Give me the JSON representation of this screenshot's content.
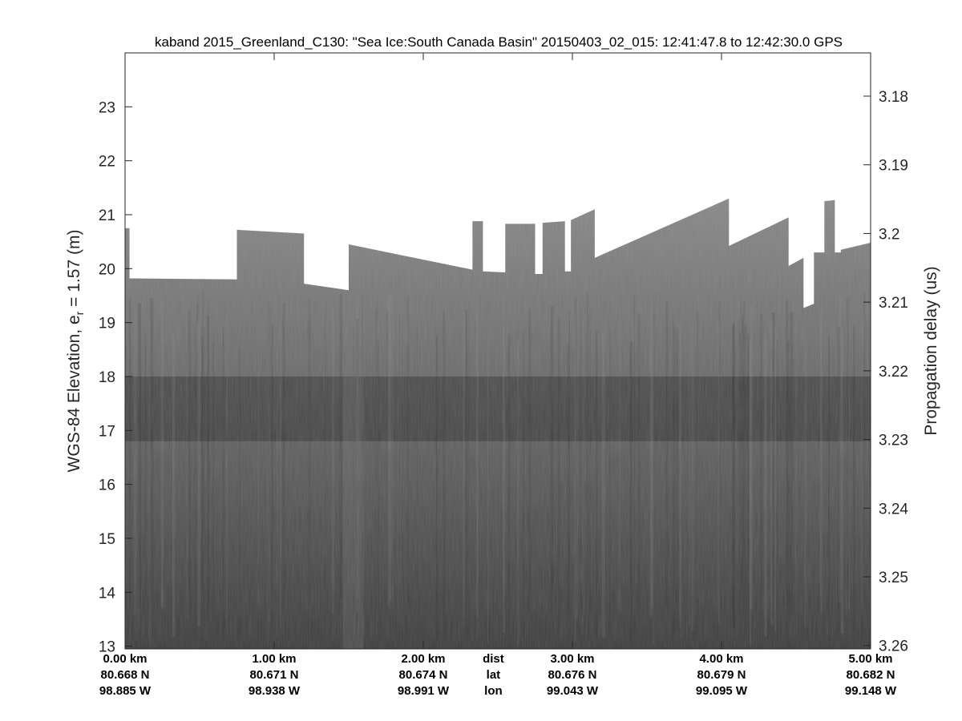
{
  "chart_data": {
    "type": "heatmap",
    "title": "kaband 2015_Greenland_C130: \"Sea Ice:South Canada Basin\"  20150403_02_015: 12:41:47.8 to 12:42:30.0 GPS",
    "ylabel_left": "WGS-84 Elevation, e",
    "ylabel_left_sub": "r",
    "ylabel_left_suffix": " = 1.57 (m)",
    "ylabel_right": "Propagation delay (us)",
    "xlim": [
      0,
      5.0
    ],
    "ylim_left": [
      12.95,
      24.0
    ],
    "ylim_right": [
      3.2605,
      3.1737
    ],
    "left_ticks": [
      13,
      14,
      15,
      16,
      17,
      18,
      19,
      20,
      21,
      22,
      23
    ],
    "right_ticks": [
      {
        "value": 3.18,
        "label": "3.18"
      },
      {
        "value": 3.19,
        "label": "3.19"
      },
      {
        "value": 3.2,
        "label": "3.2"
      },
      {
        "value": 3.21,
        "label": "3.21"
      },
      {
        "value": 3.22,
        "label": "3.22"
      },
      {
        "value": 3.23,
        "label": "3.23"
      },
      {
        "value": 3.24,
        "label": "3.24"
      },
      {
        "value": 3.25,
        "label": "3.25"
      },
      {
        "value": 3.26,
        "label": "3.26"
      }
    ],
    "x_rows": {
      "row_labels": [
        "dist",
        "lat",
        "lon"
      ],
      "row_label_position_km": 2.47,
      "columns": [
        {
          "km": 0.0,
          "dist": "0.00 km",
          "lat": "80.668 N",
          "lon": "98.885 W"
        },
        {
          "km": 1.0,
          "dist": "1.00 km",
          "lat": "80.671 N",
          "lon": "98.938 W"
        },
        {
          "km": 2.0,
          "dist": "2.00 km",
          "lat": "80.674 N",
          "lon": "98.991 W"
        },
        {
          "km": 3.0,
          "dist": "3.00 km",
          "lat": "80.676 N",
          "lon": "99.043 W"
        },
        {
          "km": 4.0,
          "dist": "4.00 km",
          "lat": "80.679 N",
          "lon": "99.095 W"
        },
        {
          "km": 5.0,
          "dist": "5.00 km",
          "lat": "80.682 N",
          "lon": "99.148 W"
        }
      ]
    },
    "top_edge_segments": [
      {
        "km": [
          0.0,
          0.03
        ],
        "elev": [
          20.75,
          20.75
        ]
      },
      {
        "km": [
          0.03,
          0.75
        ],
        "elev": [
          19.82,
          19.8
        ]
      },
      {
        "km": [
          0.75,
          1.2
        ],
        "elev": [
          20.72,
          20.65
        ]
      },
      {
        "km": [
          1.2,
          1.5
        ],
        "elev": [
          19.72,
          19.6
        ]
      },
      {
        "km": [
          1.5,
          2.33
        ],
        "elev": [
          20.45,
          19.98
        ]
      },
      {
        "km": [
          2.33,
          2.4
        ],
        "elev": [
          20.88,
          20.88
        ]
      },
      {
        "km": [
          2.4,
          2.55
        ],
        "elev": [
          19.95,
          19.93
        ]
      },
      {
        "km": [
          2.55,
          2.75
        ],
        "elev": [
          20.83,
          20.83
        ]
      },
      {
        "km": [
          2.75,
          2.8
        ],
        "elev": [
          19.9,
          19.9
        ]
      },
      {
        "km": [
          2.8,
          2.95
        ],
        "elev": [
          20.85,
          20.88
        ]
      },
      {
        "km": [
          2.95,
          2.99
        ],
        "elev": [
          19.95,
          19.95
        ]
      },
      {
        "km": [
          2.99,
          3.15
        ],
        "elev": [
          20.9,
          21.1
        ]
      },
      {
        "km": [
          3.15,
          4.05
        ],
        "elev": [
          20.2,
          21.3
        ]
      },
      {
        "km": [
          4.05,
          4.45
        ],
        "elev": [
          20.42,
          20.95
        ]
      },
      {
        "km": [
          4.45,
          4.55
        ],
        "elev": [
          20.05,
          20.2
        ]
      },
      {
        "km": [
          4.55,
          4.62
        ],
        "elev": [
          19.27,
          19.35
        ]
      },
      {
        "km": [
          4.62,
          4.69
        ],
        "elev": [
          20.3,
          20.3
        ]
      },
      {
        "km": [
          4.69,
          4.76
        ],
        "elev": [
          21.25,
          21.27
        ]
      },
      {
        "km": [
          4.76,
          4.8
        ],
        "elev": [
          20.3,
          20.3
        ]
      },
      {
        "km": [
          4.8,
          5.0
        ],
        "elev": [
          20.35,
          20.48
        ]
      }
    ],
    "colors": {
      "surface_gray": "#878787",
      "deep_gray": "#3a3a3a",
      "dark_band": "#2a2a2a",
      "axis": "#262626"
    }
  }
}
